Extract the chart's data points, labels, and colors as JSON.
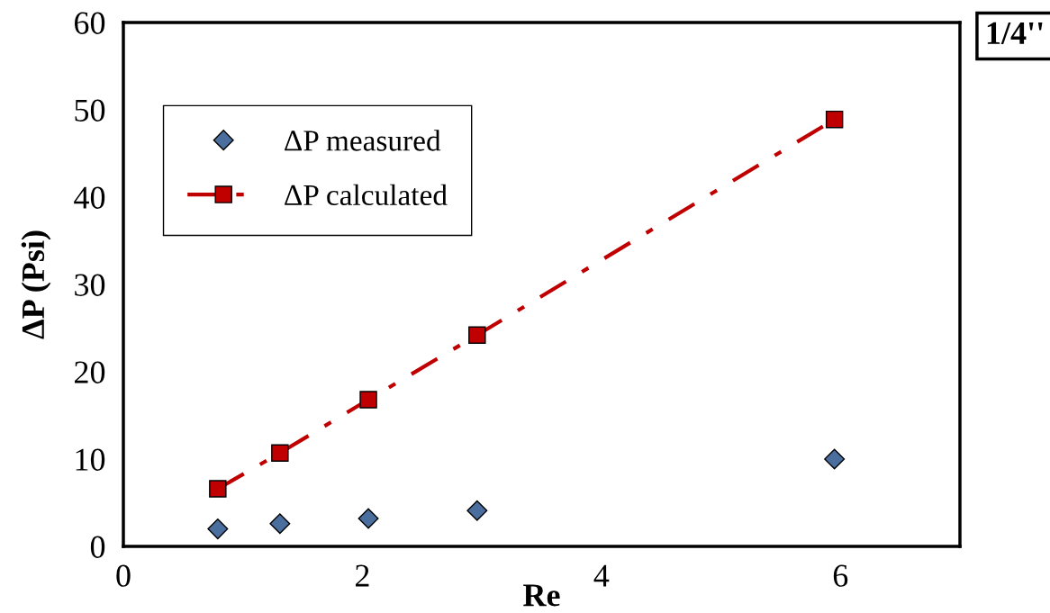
{
  "chart_data": {
    "type": "scatter",
    "xlabel": "Re",
    "ylabel": "ΔP (Psi)",
    "annotations": [
      "1/4''"
    ],
    "xlim": [
      0,
      7
    ],
    "xticks": [
      0,
      2,
      4,
      6
    ],
    "ylim": [
      0,
      60
    ],
    "yticks": [
      0,
      10,
      20,
      30,
      40,
      50,
      60
    ],
    "grid": false,
    "legend": "top left",
    "series": [
      {
        "name": "ΔP measured",
        "color": "#4a6e9e",
        "marker": "diamond",
        "x": [
          0.79,
          1.31,
          2.05,
          2.96,
          5.95
        ],
        "values": [
          2.0,
          2.6,
          3.2,
          4.1,
          10.0
        ]
      },
      {
        "name": "ΔP calculated",
        "type": "line",
        "color": "#c00000",
        "marker": "square",
        "line_style": "dashdot",
        "x": [
          0.79,
          1.31,
          2.05,
          2.96,
          5.95
        ],
        "values": [
          6.6,
          10.7,
          16.8,
          24.2,
          48.9
        ]
      }
    ]
  }
}
